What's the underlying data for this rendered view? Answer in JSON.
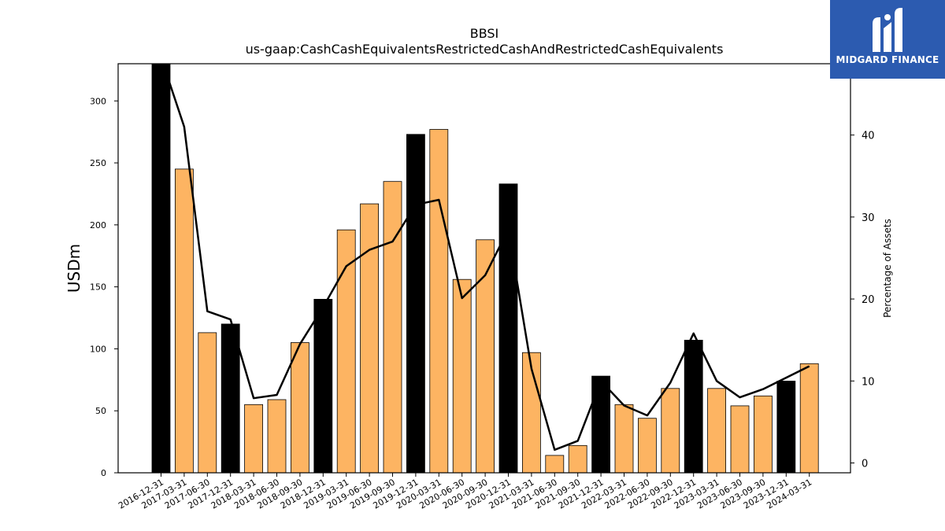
{
  "chart_data": {
    "type": "bar",
    "title": "BBSI",
    "subtitle": "us-gaap:CashCashEquivalentsRestrictedCashAndRestrictedCashEquivalents",
    "ylabel": "USDm",
    "ylabel_right": "Percentage of Assets",
    "ylim": [
      0,
      330
    ],
    "ylim_right": [
      -1.2,
      48.7
    ],
    "yticks": [
      0,
      50,
      100,
      150,
      200,
      250,
      300
    ],
    "yticks_right": [
      0,
      10,
      20,
      30,
      40
    ],
    "categories": [
      "2016-12-31",
      "2017-03-31",
      "2017-06-30",
      "2017-12-31",
      "2018-03-31",
      "2018-06-30",
      "2018-09-30",
      "2018-12-31",
      "2019-03-31",
      "2019-06-30",
      "2019-09-30",
      "2019-12-31",
      "2020-03-31",
      "2020-06-30",
      "2020-09-30",
      "2020-12-31",
      "2021-03-31",
      "2021-06-30",
      "2021-09-30",
      "2021-12-31",
      "2022-03-31",
      "2022-06-30",
      "2022-09-30",
      "2022-12-31",
      "2023-03-31",
      "2023-06-30",
      "2023-09-30",
      "2023-12-31",
      "2024-03-31"
    ],
    "series": [
      {
        "type": "bar",
        "values": [
          330,
          245,
          113,
          120,
          55,
          59,
          105,
          140,
          196,
          217,
          235,
          273,
          277,
          156,
          188,
          233,
          97,
          14,
          22,
          78,
          55,
          44,
          68,
          107,
          68,
          54,
          62,
          74,
          88
        ],
        "highlight": [
          true,
          false,
          false,
          true,
          false,
          false,
          false,
          true,
          false,
          false,
          false,
          true,
          false,
          false,
          false,
          true,
          false,
          false,
          false,
          true,
          false,
          false,
          false,
          true,
          false,
          false,
          false,
          true,
          false
        ]
      },
      {
        "type": "line",
        "axis": "right",
        "values": [
          49.5,
          41,
          18.5,
          17.5,
          7.9,
          8.3,
          14.5,
          19,
          24,
          26,
          27,
          31.5,
          32.1,
          20.1,
          22.9,
          28.5,
          11.5,
          1.6,
          2.7,
          10,
          7,
          5.8,
          9.8,
          15.8,
          10,
          8,
          9,
          10.4,
          11.8
        ]
      }
    ],
    "colors": {
      "bar": "#fdb462",
      "bar_highlight": "#000000",
      "line": "#000000",
      "bar_edge": "#000000"
    },
    "grid": false,
    "legend": "none"
  },
  "logo": {
    "text": "MIDGARD FINANCE",
    "background": "#2c5bb0"
  }
}
